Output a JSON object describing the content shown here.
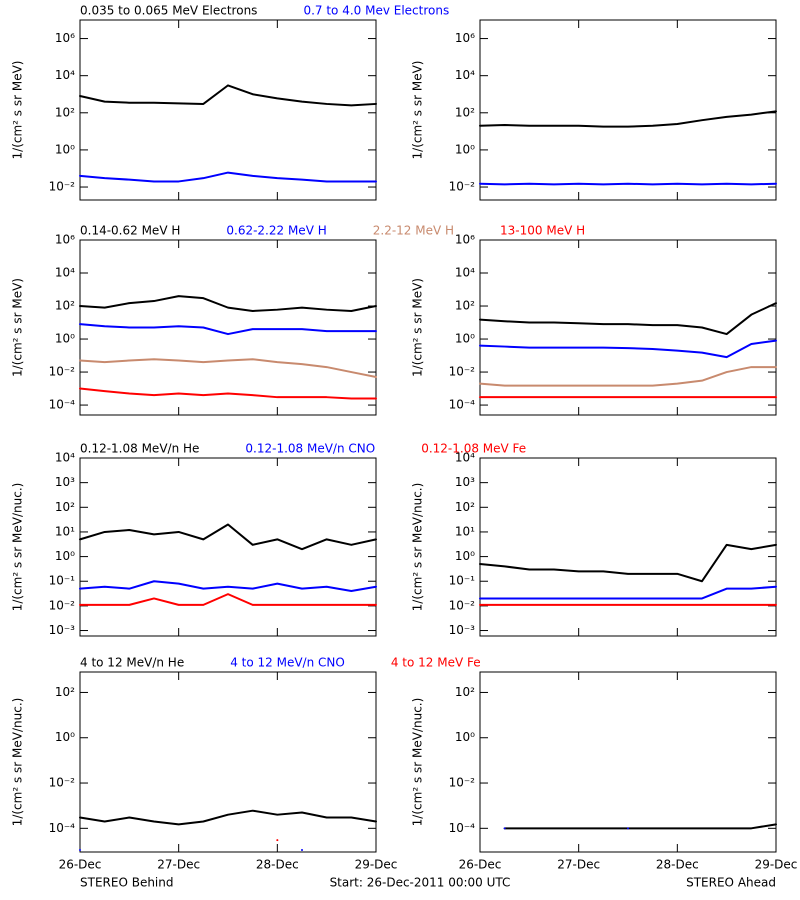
{
  "x_axis": {
    "xlim": [
      0,
      3
    ],
    "xticks": [
      {
        "value": 0,
        "label": "26-Dec"
      },
      {
        "value": 1,
        "label": "27-Dec"
      },
      {
        "value": 2,
        "label": "28-Dec"
      },
      {
        "value": 3,
        "label": "29-Dec"
      }
    ]
  },
  "captions": {
    "left": "STEREO Behind",
    "center": "Start: 26-Dec-2011 00:00 UTC",
    "right": "STEREO Ahead"
  },
  "chart_data": [
    {
      "type": "line",
      "log_y": true,
      "ylabel": "1/(cm² s sr MeV)",
      "ylim": [
        0.002,
        10000000
      ],
      "yticks": [
        {
          "value": 0.01,
          "label": "10⁻²"
        },
        {
          "value": 1,
          "label": "10⁰"
        },
        {
          "value": 100,
          "label": "10²"
        },
        {
          "value": 10000,
          "label": "10⁴"
        },
        {
          "value": 1000000,
          "label": "10⁶"
        }
      ],
      "x": [
        0,
        0.25,
        0.5,
        0.75,
        1,
        1.25,
        1.5,
        1.75,
        2,
        2.25,
        2.5,
        2.75,
        3
      ],
      "series": [
        {
          "name": "0.035 to 0.065 MeV Electrons",
          "color": "#000000",
          "values": [
            800,
            400,
            350,
            350,
            320,
            300,
            3000,
            1000,
            600,
            400,
            300,
            250,
            300
          ]
        },
        {
          "name": "0.7 to 4.0 Mev Electrons",
          "color": "#0000ff",
          "values": [
            0.04,
            0.03,
            0.025,
            0.02,
            0.02,
            0.03,
            0.06,
            0.04,
            0.03,
            0.025,
            0.02,
            0.02,
            0.02
          ]
        }
      ]
    },
    {
      "type": "line",
      "log_y": true,
      "ylabel": "1/(cm² s sr MeV)",
      "ylim": [
        0.002,
        10000000
      ],
      "yticks": [
        {
          "value": 0.01,
          "label": "10⁻²"
        },
        {
          "value": 1,
          "label": "10⁰"
        },
        {
          "value": 100,
          "label": "10²"
        },
        {
          "value": 10000,
          "label": "10⁴"
        },
        {
          "value": 1000000,
          "label": "10⁶"
        }
      ],
      "x": [
        0,
        0.25,
        0.5,
        0.75,
        1,
        1.25,
        1.5,
        1.75,
        2,
        2.25,
        2.5,
        2.75,
        3
      ],
      "series": [
        {
          "color": "#000000",
          "values": [
            20,
            22,
            20,
            20,
            20,
            18,
            18,
            20,
            25,
            40,
            60,
            80,
            120
          ]
        },
        {
          "color": "#0000ff",
          "values": [
            0.015,
            0.014,
            0.015,
            0.014,
            0.015,
            0.014,
            0.015,
            0.014,
            0.015,
            0.014,
            0.015,
            0.014,
            0.015
          ]
        }
      ]
    },
    {
      "type": "line",
      "log_y": true,
      "ylabel": "1/(cm² s sr MeV)",
      "ylim": [
        2.5e-05,
        1000000
      ],
      "yticks": [
        {
          "value": 0.0001,
          "label": "10⁻⁴"
        },
        {
          "value": 0.01,
          "label": "10⁻²"
        },
        {
          "value": 1,
          "label": "10⁰"
        },
        {
          "value": 100,
          "label": "10²"
        },
        {
          "value": 10000,
          "label": "10⁴"
        },
        {
          "value": 1000000,
          "label": "10⁶"
        }
      ],
      "x": [
        0,
        0.25,
        0.5,
        0.75,
        1,
        1.25,
        1.5,
        1.75,
        2,
        2.25,
        2.5,
        2.75,
        3
      ],
      "series": [
        {
          "name": "0.14-0.62 MeV H",
          "color": "#000000",
          "values": [
            100,
            80,
            150,
            200,
            400,
            300,
            80,
            50,
            60,
            80,
            60,
            50,
            100
          ]
        },
        {
          "name": "0.62-2.22 MeV H",
          "color": "#0000ff",
          "values": [
            8,
            6,
            5,
            5,
            6,
            5,
            2,
            4,
            4,
            4,
            3,
            3,
            3
          ]
        },
        {
          "name": "2.2-12 MeV H",
          "color": "#c88a6e",
          "values": [
            0.05,
            0.04,
            0.05,
            0.06,
            0.05,
            0.04,
            0.05,
            0.06,
            0.04,
            0.03,
            0.02,
            0.01,
            0.005
          ]
        },
        {
          "name": "13-100 MeV H",
          "color": "#ff0000",
          "values": [
            0.001,
            0.0007,
            0.0005,
            0.0004,
            0.0005,
            0.0004,
            0.0005,
            0.0004,
            0.0003,
            0.0003,
            0.0003,
            0.00025,
            0.00025
          ]
        }
      ]
    },
    {
      "type": "line",
      "log_y": true,
      "ylabel": "1/(cm² s sr MeV)",
      "ylim": [
        2.5e-05,
        1000000
      ],
      "yticks": [
        {
          "value": 0.0001,
          "label": "10⁻⁴"
        },
        {
          "value": 0.01,
          "label": "10⁻²"
        },
        {
          "value": 1,
          "label": "10⁰"
        },
        {
          "value": 100,
          "label": "10²"
        },
        {
          "value": 10000,
          "label": "10⁴"
        },
        {
          "value": 1000000,
          "label": "10⁶"
        }
      ],
      "x": [
        0,
        0.25,
        0.5,
        0.75,
        1,
        1.25,
        1.5,
        1.75,
        2,
        2.25,
        2.5,
        2.75,
        3
      ],
      "series": [
        {
          "color": "#000000",
          "values": [
            15,
            12,
            10,
            10,
            9,
            8,
            8,
            7,
            7,
            5,
            2,
            30,
            150
          ]
        },
        {
          "color": "#0000ff",
          "values": [
            0.4,
            0.35,
            0.3,
            0.3,
            0.3,
            0.3,
            0.28,
            0.25,
            0.2,
            0.15,
            0.08,
            0.5,
            0.8
          ]
        },
        {
          "color": "#c88a6e",
          "values": [
            0.002,
            0.0015,
            0.0015,
            0.0015,
            0.0015,
            0.0015,
            0.0015,
            0.0015,
            0.002,
            0.003,
            0.01,
            0.02,
            0.02
          ]
        },
        {
          "color": "#ff0000",
          "values": [
            0.0003,
            0.0003,
            0.0003,
            0.0003,
            0.0003,
            0.0003,
            0.0003,
            0.0003,
            0.0003,
            0.0003,
            0.0003,
            0.0003,
            0.0003
          ]
        }
      ]
    },
    {
      "type": "line",
      "log_y": true,
      "ylabel": "1/(cm² s sr MeV/nuc.)",
      "ylim": [
        0.0006,
        10000
      ],
      "yticks": [
        {
          "value": 0.001,
          "label": "10⁻³"
        },
        {
          "value": 0.01,
          "label": "10⁻²"
        },
        {
          "value": 0.1,
          "label": "10⁻¹"
        },
        {
          "value": 1,
          "label": "10⁰"
        },
        {
          "value": 10,
          "label": "10¹"
        },
        {
          "value": 100,
          "label": "10²"
        },
        {
          "value": 1000,
          "label": "10³"
        },
        {
          "value": 10000,
          "label": "10⁴"
        }
      ],
      "x": [
        0,
        0.25,
        0.5,
        0.75,
        1,
        1.25,
        1.5,
        1.75,
        2,
        2.25,
        2.5,
        2.75,
        3
      ],
      "series": [
        {
          "name": "0.12-1.08 MeV/n He",
          "color": "#000000",
          "values": [
            5,
            10,
            12,
            8,
            10,
            5,
            20,
            3,
            5,
            2,
            5,
            3,
            5
          ]
        },
        {
          "name": "0.12-1.08 MeV/n CNO",
          "color": "#0000ff",
          "values": [
            0.05,
            0.06,
            0.05,
            0.1,
            0.08,
            0.05,
            0.06,
            0.05,
            0.08,
            0.05,
            0.06,
            0.04,
            0.06
          ]
        },
        {
          "name": "0.12-1.08 MeV Fe",
          "color": "#ff0000",
          "values": [
            0.011,
            0.011,
            0.011,
            0.02,
            0.011,
            0.011,
            0.03,
            0.011,
            0.011,
            0.011,
            0.011,
            0.011,
            0.011
          ]
        }
      ]
    },
    {
      "type": "line",
      "log_y": true,
      "ylabel": "1/(cm² s sr MeV/nuc.)",
      "ylim": [
        0.0006,
        10000
      ],
      "yticks": [
        {
          "value": 0.001,
          "label": "10⁻³"
        },
        {
          "value": 0.01,
          "label": "10⁻²"
        },
        {
          "value": 0.1,
          "label": "10⁻¹"
        },
        {
          "value": 1,
          "label": "10⁰"
        },
        {
          "value": 10,
          "label": "10¹"
        },
        {
          "value": 100,
          "label": "10²"
        },
        {
          "value": 1000,
          "label": "10³"
        },
        {
          "value": 10000,
          "label": "10⁴"
        }
      ],
      "x": [
        0,
        0.25,
        0.5,
        0.75,
        1,
        1.25,
        1.5,
        1.75,
        2,
        2.25,
        2.5,
        2.75,
        3
      ],
      "series": [
        {
          "color": "#000000",
          "values": [
            0.5,
            0.4,
            0.3,
            0.3,
            0.25,
            0.25,
            0.2,
            0.2,
            0.2,
            0.1,
            3,
            2,
            3
          ]
        },
        {
          "color": "#0000ff",
          "values": [
            0.02,
            0.02,
            0.02,
            0.02,
            0.02,
            0.02,
            0.02,
            0.02,
            0.02,
            0.02,
            0.05,
            0.05,
            0.06
          ]
        },
        {
          "color": "#ff0000",
          "values": [
            0.011,
            0.011,
            0.011,
            0.011,
            0.011,
            0.011,
            0.011,
            0.011,
            0.011,
            0.011,
            0.011,
            0.011,
            0.011
          ]
        }
      ]
    },
    {
      "type": "line",
      "log_y": true,
      "ylabel": "1/(cm² s sr MeV/nuc.)",
      "ylim": [
        9e-06,
        800
      ],
      "yticks": [
        {
          "value": 0.0001,
          "label": "10⁻⁴"
        },
        {
          "value": 0.01,
          "label": "10⁻²"
        },
        {
          "value": 1,
          "label": "10⁰"
        },
        {
          "value": 100,
          "label": "10²"
        }
      ],
      "x": [
        0,
        0.25,
        0.5,
        0.75,
        1,
        1.25,
        1.5,
        1.75,
        2,
        2.25,
        2.5,
        2.75,
        3
      ],
      "series": [
        {
          "name": "4 to 12 MeV/n He",
          "color": "#000000",
          "values": [
            0.0003,
            0.0002,
            0.0003,
            0.0002,
            0.00015,
            0.0002,
            0.0004,
            0.0006,
            0.0004,
            0.0005,
            0.0003,
            0.0003,
            0.0002
          ]
        },
        {
          "name": "4 to 12 MeV/n CNO",
          "color": "#0000ff",
          "values": [
            1.1e-05,
            null,
            null,
            null,
            null,
            null,
            null,
            null,
            null,
            1.1e-05,
            null,
            null,
            null
          ]
        },
        {
          "name": "4 to 12 MeV Fe",
          "color": "#ff0000",
          "values": [
            null,
            null,
            null,
            null,
            null,
            null,
            null,
            null,
            3e-05,
            null,
            null,
            null,
            null
          ]
        }
      ]
    },
    {
      "type": "line",
      "log_y": true,
      "ylabel": "1/(cm² s sr MeV/nuc.)",
      "ylim": [
        9e-06,
        800
      ],
      "yticks": [
        {
          "value": 0.0001,
          "label": "10⁻⁴"
        },
        {
          "value": 0.01,
          "label": "10⁻²"
        },
        {
          "value": 1,
          "label": "10⁰"
        },
        {
          "value": 100,
          "label": "10²"
        }
      ],
      "x": [
        0,
        0.25,
        0.5,
        0.75,
        1,
        1.25,
        1.5,
        1.75,
        2,
        2.25,
        2.5,
        2.75,
        3
      ],
      "series": [
        {
          "color": "#000000",
          "values": [
            null,
            0.0001,
            0.0001,
            0.0001,
            0.0001,
            0.0001,
            0.0001,
            0.0001,
            0.0001,
            0.0001,
            0.0001,
            0.0001,
            0.00015
          ]
        },
        {
          "color": "#0000ff",
          "values": [
            null,
            0.0001,
            null,
            null,
            null,
            null,
            0.0001,
            null,
            null,
            null,
            null,
            null,
            null
          ]
        }
      ]
    }
  ]
}
